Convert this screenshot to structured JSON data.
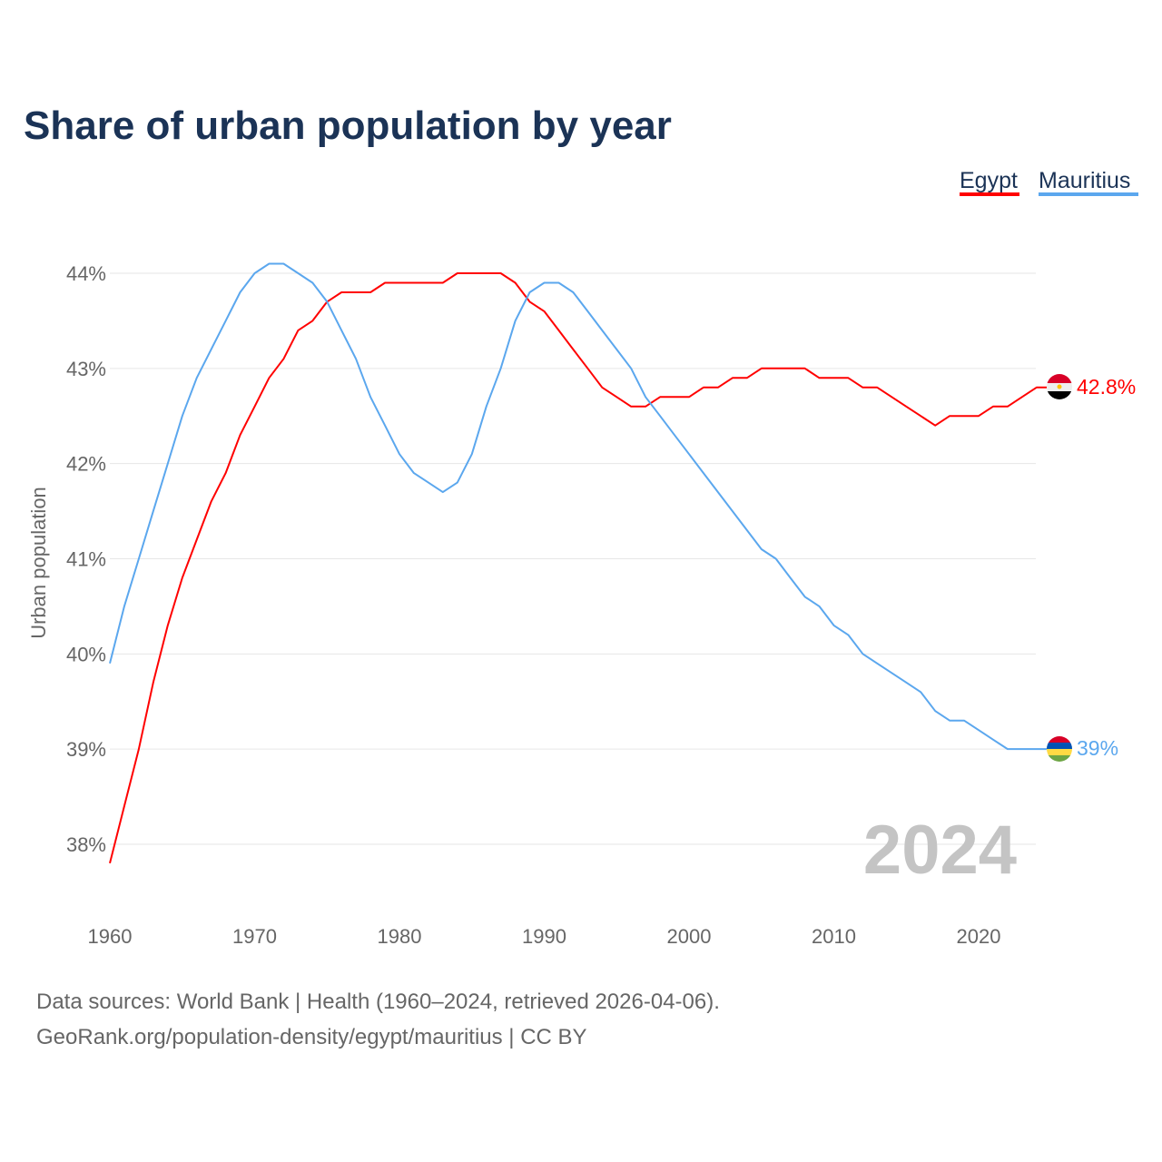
{
  "chart_data": {
    "type": "line",
    "title": "Share of urban population by year",
    "xlabel": "",
    "ylabel": "Urban population",
    "xlim": [
      1960,
      2024
    ],
    "ylim": [
      37.5,
      44.5
    ],
    "x_ticks": [
      1960,
      1970,
      1980,
      1990,
      2000,
      2010,
      2020
    ],
    "x_tick_labels": [
      "1960",
      "1970",
      "1980",
      "1990",
      "2000",
      "2010",
      "2020"
    ],
    "y_ticks": [
      38,
      39,
      40,
      41,
      42,
      43,
      44
    ],
    "y_tick_labels": [
      "38%",
      "39%",
      "40%",
      "41%",
      "42%",
      "43%",
      "44%"
    ],
    "grid": true,
    "legend_placement": "top-right",
    "year_watermark": "2024",
    "series": [
      {
        "name": "Egypt",
        "color": "#ff0000",
        "end_label": "42.8%",
        "values": [
          37.8,
          38.4,
          39.0,
          39.7,
          40.3,
          40.8,
          41.2,
          41.6,
          41.9,
          42.3,
          42.6,
          42.9,
          43.1,
          43.4,
          43.5,
          43.7,
          43.8,
          43.8,
          43.8,
          43.9,
          43.9,
          43.9,
          43.9,
          43.9,
          44.0,
          44.0,
          44.0,
          44.0,
          43.9,
          43.7,
          43.6,
          43.4,
          43.2,
          43.0,
          42.8,
          42.7,
          42.6,
          42.6,
          42.7,
          42.7,
          42.7,
          42.8,
          42.8,
          42.9,
          42.9,
          43.0,
          43.0,
          43.0,
          43.0,
          42.9,
          42.9,
          42.9,
          42.8,
          42.8,
          42.7,
          42.6,
          42.5,
          42.4,
          42.5,
          42.5,
          42.5,
          42.6,
          42.6,
          42.7,
          42.8
        ]
      },
      {
        "name": "Mauritius",
        "color": "#5ba7ee",
        "end_label": "39%",
        "values": [
          39.9,
          40.5,
          41.0,
          41.5,
          42.0,
          42.5,
          42.9,
          43.2,
          43.5,
          43.8,
          44.0,
          44.1,
          44.1,
          44.0,
          43.9,
          43.7,
          43.4,
          43.1,
          42.7,
          42.4,
          42.1,
          41.9,
          41.8,
          41.7,
          41.8,
          42.1,
          42.6,
          43.0,
          43.5,
          43.8,
          43.9,
          43.9,
          43.8,
          43.6,
          43.4,
          43.2,
          43.0,
          42.7,
          42.5,
          42.3,
          42.1,
          41.9,
          41.7,
          41.5,
          41.3,
          41.1,
          41.0,
          40.8,
          40.6,
          40.5,
          40.3,
          40.2,
          40.0,
          39.9,
          39.8,
          39.7,
          39.6,
          39.4,
          39.3,
          39.3,
          39.2,
          39.1,
          39.0,
          39.0,
          39.0
        ]
      }
    ]
  },
  "footer": {
    "line1": "Data sources: World Bank | Health (1960–2024, retrieved 2026-04-06).",
    "line2": "GeoRank.org/population-density/egypt/mauritius | CC BY"
  }
}
